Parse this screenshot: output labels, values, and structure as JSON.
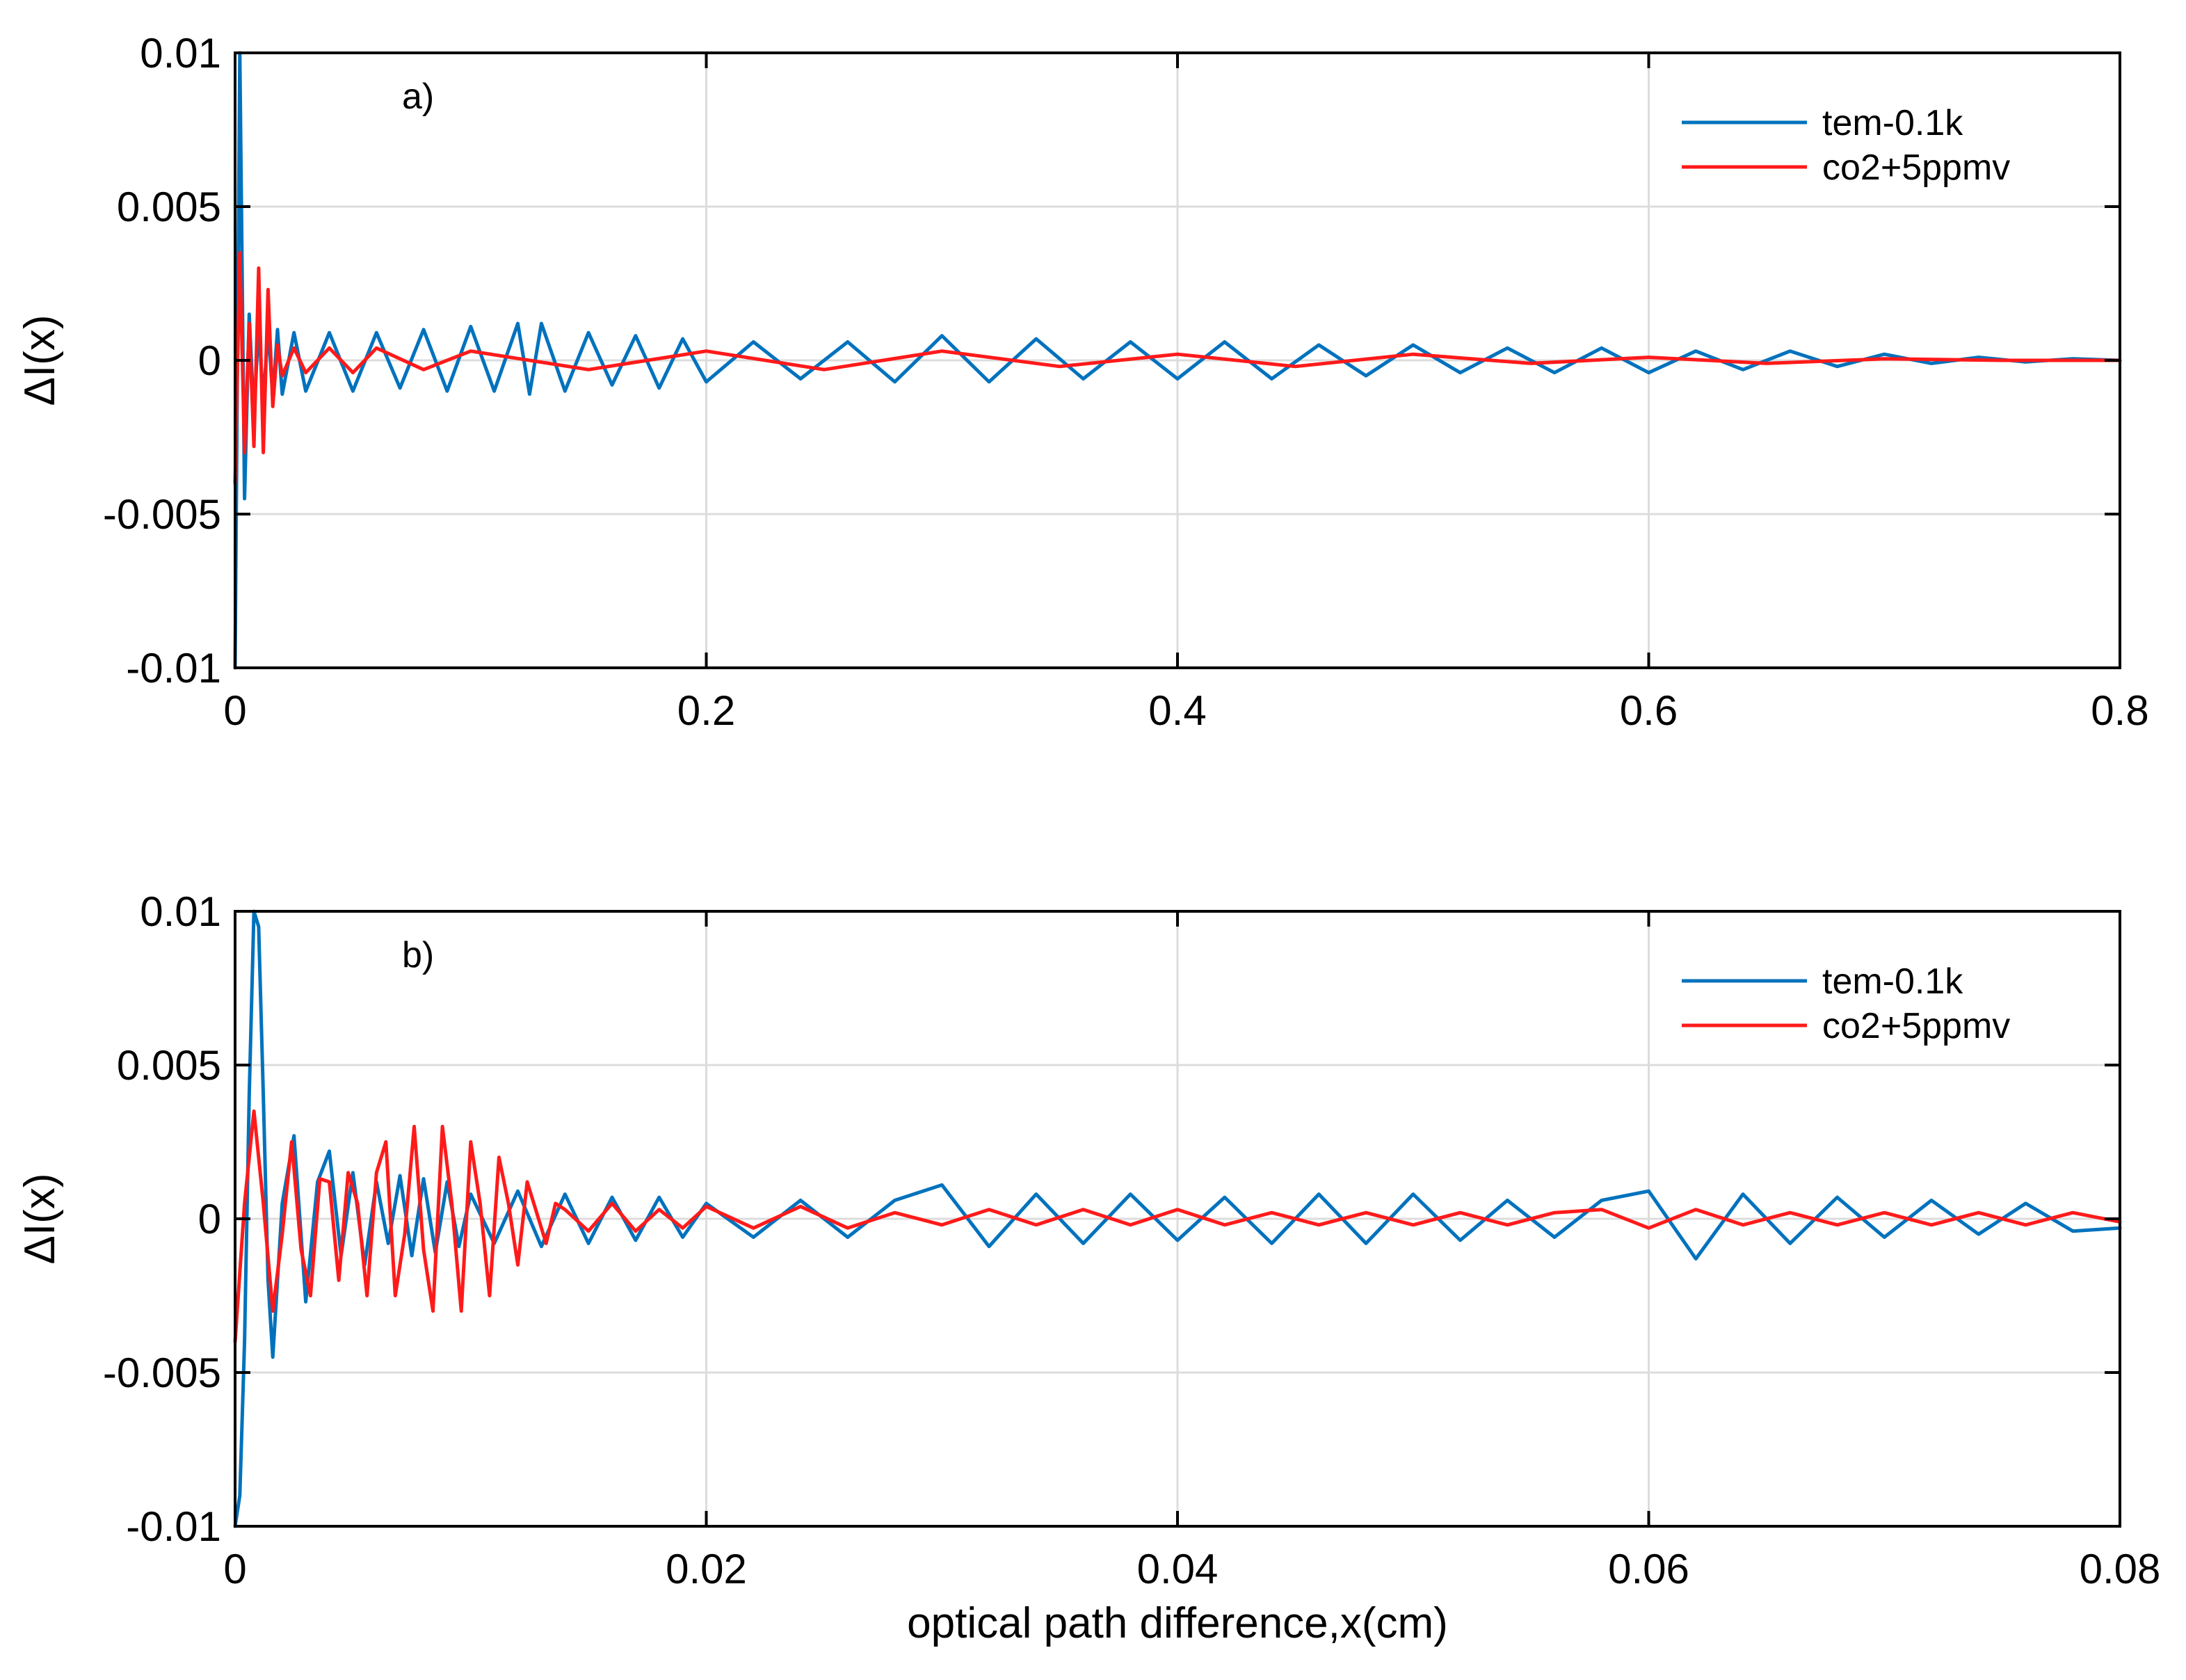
{
  "chart_data": [
    {
      "type": "line",
      "panel_label": "a)",
      "title": "",
      "xlabel": "",
      "ylabel": "ΔI(x)",
      "xlim": [
        0,
        0.8
      ],
      "ylim": [
        -0.01,
        0.01
      ],
      "xticks": [
        0,
        0.2,
        0.4,
        0.6,
        0.8
      ],
      "xtick_labels": [
        "0",
        "0.2",
        "0.4",
        "0.6",
        "0.8"
      ],
      "yticks": [
        -0.01,
        -0.005,
        0,
        0.005,
        0.01
      ],
      "ytick_labels": [
        "-0.01",
        "-0.005",
        "0",
        "0.005",
        "0.01"
      ],
      "grid": true,
      "legend_position": "top-right",
      "series": [
        {
          "name": "tem-0.1k",
          "color": "#0072BD",
          "x": [
            0,
            0.002,
            0.004,
            0.006,
            0.008,
            0.01,
            0.012,
            0.014,
            0.016,
            0.018,
            0.02,
            0.025,
            0.03,
            0.04,
            0.05,
            0.06,
            0.07,
            0.08,
            0.09,
            0.1,
            0.11,
            0.12,
            0.125,
            0.13,
            0.14,
            0.15,
            0.16,
            0.17,
            0.18,
            0.19,
            0.2,
            0.22,
            0.24,
            0.26,
            0.28,
            0.3,
            0.32,
            0.34,
            0.36,
            0.38,
            0.4,
            0.42,
            0.44,
            0.46,
            0.48,
            0.5,
            0.52,
            0.54,
            0.56,
            0.58,
            0.6,
            0.62,
            0.64,
            0.66,
            0.68,
            0.7,
            0.72,
            0.74,
            0.76,
            0.78,
            0.8
          ],
          "y": [
            -0.01,
            0.01,
            -0.0045,
            0.0015,
            -0.0018,
            0.0012,
            -0.0014,
            0.0011,
            -0.0012,
            0.001,
            -0.0011,
            0.0009,
            -0.001,
            0.0009,
            -0.001,
            0.0009,
            -0.0009,
            0.001,
            -0.001,
            0.0011,
            -0.001,
            0.0012,
            -0.0011,
            0.0012,
            -0.001,
            0.0009,
            -0.0008,
            0.0008,
            -0.0009,
            0.0007,
            -0.0007,
            0.0006,
            -0.0006,
            0.0006,
            -0.0007,
            0.0008,
            -0.0007,
            0.0007,
            -0.0006,
            0.0006,
            -0.0006,
            0.0006,
            -0.0006,
            0.0005,
            -0.0005,
            0.0005,
            -0.0004,
            0.0004,
            -0.0004,
            0.0004,
            -0.0004,
            0.0003,
            -0.0003,
            0.0003,
            -0.0002,
            0.0002,
            -0.0001,
            0.0001,
            -5e-05,
            5e-05,
            0
          ]
        },
        {
          "name": "co2+5ppmv",
          "color": "#FF1A1A",
          "x": [
            0,
            0.002,
            0.004,
            0.006,
            0.008,
            0.01,
            0.012,
            0.014,
            0.016,
            0.018,
            0.02,
            0.025,
            0.03,
            0.04,
            0.05,
            0.06,
            0.08,
            0.1,
            0.15,
            0.2,
            0.25,
            0.3,
            0.35,
            0.4,
            0.45,
            0.5,
            0.55,
            0.6,
            0.65,
            0.7,
            0.75,
            0.8
          ],
          "y": [
            -0.004,
            0.0035,
            -0.003,
            0.0012,
            -0.0028,
            0.003,
            -0.003,
            0.0023,
            -0.0015,
            0.0005,
            -0.0005,
            0.0004,
            -0.0004,
            0.0004,
            -0.0004,
            0.0004,
            -0.0003,
            0.0003,
            -0.0003,
            0.0003,
            -0.0003,
            0.0003,
            -0.0002,
            0.0002,
            -0.0002,
            0.0002,
            -0.0001,
            0.0001,
            -0.0001,
            5e-05,
            0,
            0
          ]
        }
      ]
    },
    {
      "type": "line",
      "panel_label": "b)",
      "title": "",
      "xlabel": "optical path difference,x(cm)",
      "ylabel": "ΔI(x)",
      "xlim": [
        0,
        0.08
      ],
      "ylim": [
        -0.01,
        0.01
      ],
      "xticks": [
        0,
        0.02,
        0.04,
        0.06,
        0.08
      ],
      "xtick_labels": [
        "0",
        "0.02",
        "0.04",
        "0.06",
        "0.08"
      ],
      "yticks": [
        -0.01,
        -0.005,
        0,
        0.005,
        0.01
      ],
      "ytick_labels": [
        "-0.01",
        "-0.005",
        "0",
        "0.005",
        "0.01"
      ],
      "grid": true,
      "legend_position": "top-right",
      "series": [
        {
          "name": "tem-0.1k",
          "color": "#0072BD",
          "x": [
            0,
            0.0002,
            0.0004,
            0.0006,
            0.0008,
            0.001,
            0.0012,
            0.0014,
            0.0016,
            0.0018,
            0.002,
            0.0025,
            0.003,
            0.0035,
            0.004,
            0.0045,
            0.005,
            0.0055,
            0.006,
            0.0065,
            0.007,
            0.0075,
            0.008,
            0.0085,
            0.009,
            0.0095,
            0.01,
            0.011,
            0.012,
            0.013,
            0.014,
            0.015,
            0.016,
            0.017,
            0.018,
            0.019,
            0.02,
            0.022,
            0.024,
            0.026,
            0.028,
            0.03,
            0.032,
            0.034,
            0.036,
            0.038,
            0.04,
            0.042,
            0.044,
            0.046,
            0.048,
            0.05,
            0.052,
            0.054,
            0.056,
            0.058,
            0.06,
            0.062,
            0.064,
            0.066,
            0.068,
            0.07,
            0.072,
            0.074,
            0.076,
            0.078,
            0.08
          ],
          "y": [
            -0.01,
            -0.009,
            -0.004,
            0.004,
            0.01,
            0.0095,
            0.004,
            -0.002,
            -0.0045,
            -0.002,
            0.0005,
            0.0027,
            -0.0027,
            0.0012,
            0.0022,
            -0.0012,
            0.0015,
            -0.0015,
            0.0012,
            -0.0008,
            0.0014,
            -0.0012,
            0.0013,
            -0.0011,
            0.0012,
            -0.0009,
            0.0008,
            -0.0008,
            0.0009,
            -0.0009,
            0.0008,
            -0.0008,
            0.0007,
            -0.0007,
            0.0007,
            -0.0006,
            0.0005,
            -0.0006,
            0.0006,
            -0.0006,
            0.0006,
            0.0011,
            -0.0009,
            0.0008,
            -0.0008,
            0.0008,
            -0.0007,
            0.0007,
            -0.0008,
            0.0008,
            -0.0008,
            0.0008,
            -0.0007,
            0.0006,
            -0.0006,
            0.0006,
            0.0009,
            -0.0013,
            0.0008,
            -0.0008,
            0.0007,
            -0.0006,
            0.0006,
            -0.0005,
            0.0005,
            -0.0004,
            -0.0003
          ]
        },
        {
          "name": "co2+5ppmv",
          "color": "#FF1A1A",
          "x": [
            0,
            0.0004,
            0.0008,
            0.0012,
            0.0016,
            0.002,
            0.0024,
            0.0028,
            0.0032,
            0.0036,
            0.004,
            0.0044,
            0.0048,
            0.0052,
            0.0056,
            0.006,
            0.0064,
            0.0068,
            0.0072,
            0.0076,
            0.008,
            0.0084,
            0.0088,
            0.0092,
            0.0096,
            0.01,
            0.0104,
            0.0108,
            0.0112,
            0.0116,
            0.012,
            0.0124,
            0.0128,
            0.0132,
            0.0136,
            0.014,
            0.015,
            0.016,
            0.017,
            0.018,
            0.019,
            0.02,
            0.022,
            0.024,
            0.026,
            0.028,
            0.03,
            0.032,
            0.034,
            0.036,
            0.038,
            0.04,
            0.042,
            0.044,
            0.046,
            0.048,
            0.05,
            0.052,
            0.054,
            0.056,
            0.058,
            0.06,
            0.062,
            0.064,
            0.066,
            0.068,
            0.07,
            0.072,
            0.074,
            0.076,
            0.078,
            0.08
          ],
          "y": [
            -0.004,
            0.0005,
            0.0035,
            0.0005,
            -0.003,
            -0.0005,
            0.0025,
            -0.001,
            -0.0025,
            0.0013,
            0.0012,
            -0.002,
            0.0015,
            0.0005,
            -0.0025,
            0.0015,
            0.0025,
            -0.0025,
            -0.0005,
            0.003,
            -0.001,
            -0.003,
            0.003,
            0.0005,
            -0.003,
            0.0025,
            0.0005,
            -0.0025,
            0.002,
            0.0005,
            -0.0015,
            0.0012,
            0.0002,
            -0.0008,
            0.0005,
            0.0003,
            -0.0004,
            0.0005,
            -0.0004,
            0.0003,
            -0.0003,
            0.0004,
            -0.0003,
            0.0004,
            -0.0003,
            0.0002,
            -0.0002,
            0.0003,
            -0.0002,
            0.0003,
            -0.0002,
            0.0003,
            -0.0002,
            0.0002,
            -0.0002,
            0.0002,
            -0.0002,
            0.0002,
            -0.0002,
            0.0002,
            0.0003,
            -0.0003,
            0.0003,
            -0.0002,
            0.0002,
            -0.0002,
            0.0002,
            -0.0002,
            0.0002,
            -0.0002,
            0.0002,
            -0.0001
          ]
        }
      ]
    }
  ]
}
